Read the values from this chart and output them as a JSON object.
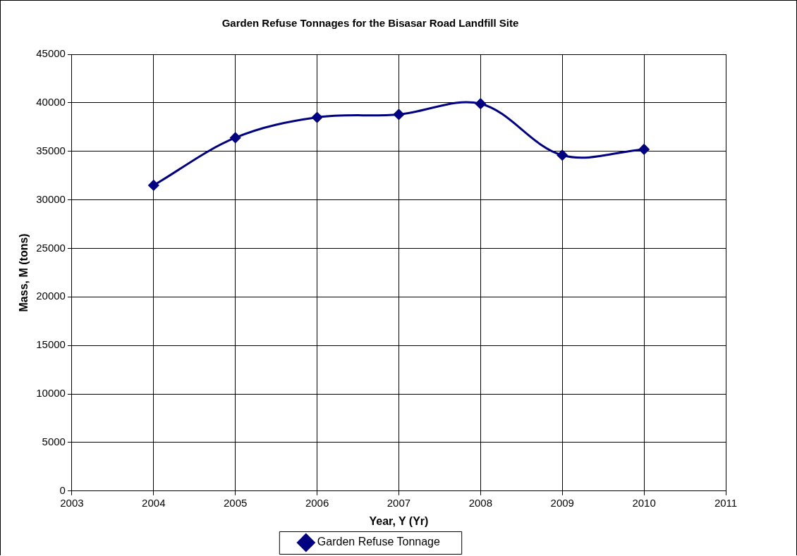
{
  "chart_data": {
    "type": "line",
    "title": "Garden Refuse Tonnages for the Bisasar Road Landfill Site",
    "xlabel": "Year, Y (Yr)",
    "ylabel": "Mass, M (tons)",
    "x": [
      2004,
      2005,
      2006,
      2007,
      2008,
      2009,
      2010
    ],
    "series": [
      {
        "name": "Garden Refuse Tonnage",
        "color": "#000080",
        "values": [
          31500,
          36400,
          38500,
          38800,
          39900,
          34600,
          35200
        ]
      }
    ],
    "xlim": [
      2003,
      2011
    ],
    "xticks": [
      2003,
      2004,
      2005,
      2006,
      2007,
      2008,
      2009,
      2010,
      2011
    ],
    "ylim": [
      0,
      45000
    ],
    "yticks": [
      0,
      5000,
      10000,
      15000,
      20000,
      25000,
      30000,
      35000,
      40000,
      45000
    ],
    "grid": true,
    "legend": "bottom",
    "marker": "diamond",
    "line_style": "solid"
  }
}
